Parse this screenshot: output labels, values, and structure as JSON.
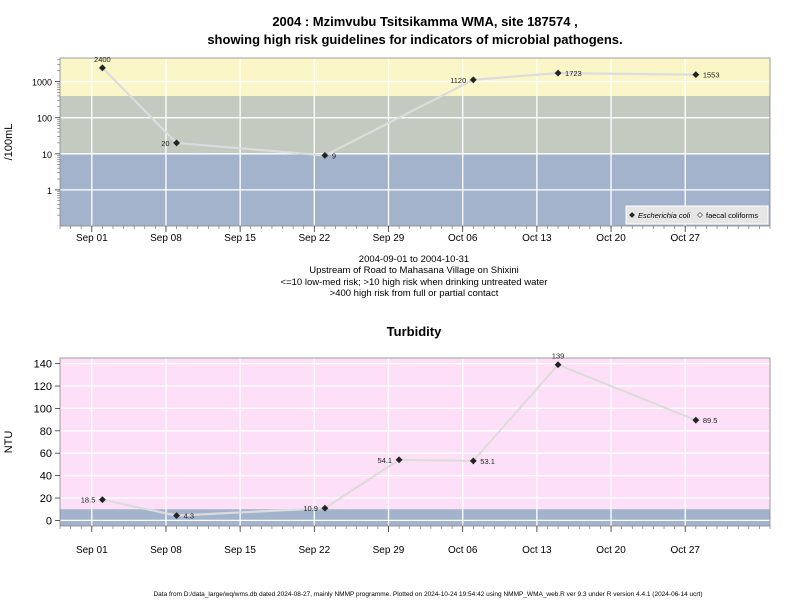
{
  "title": {
    "line1": "2004 : Mzimvubu Tsitsikamma WMA, site 187574 ,",
    "line2": "showing high risk guidelines for indicators of microbial pathogens."
  },
  "footer": "Data from D:/data_large/wq/wms.db dated 2024-08-27, mainly NMMP programme. Plotted on 2024-10-24 19:54:42 using NMMP_WMA_web.R ver 9.3 under R version 4.4.1 (2024-06-14 ucrt)",
  "colors": {
    "background": "#ffffff",
    "band_low": "#a3b3cc",
    "band_mid": "#c3cbc0",
    "band_high": "#fbf6c8",
    "turbidity_bg": "#fde0f8",
    "grid": "#ffffff",
    "line": "#dcdcdc",
    "marker": "#222222"
  },
  "x_ticks": [
    "Sep 01",
    "Sep 08",
    "Sep 15",
    "Sep 22",
    "Sep 29",
    "Oct 06",
    "Oct 13",
    "Oct 20",
    "Oct 27"
  ],
  "x_tick_dates": [
    "2004-09-01",
    "2004-09-08",
    "2004-09-15",
    "2004-09-22",
    "2004-09-29",
    "2004-10-06",
    "2004-10-13",
    "2004-10-20",
    "2004-10-27"
  ],
  "micro": {
    "ylabel": "/100mL",
    "y_ticks": [
      "1",
      "10",
      "100",
      "1000"
    ],
    "y_tick_values": [
      1,
      10,
      100,
      1000
    ],
    "captions": [
      "2004-09-01 to 2004-10-31",
      "Upstream of Road to Mahasana Village on Shixini",
      "<=10 low-med risk; >10 high risk when drinking untreated water",
      ">400 high risk from full or partial contact"
    ],
    "legend": {
      "ecoli": "Escherichia coli",
      "faecal": "faecal coliforms"
    }
  },
  "turbidity": {
    "title": "Turbidity",
    "ylabel": "NTU",
    "y_ticks": [
      "0",
      "20",
      "40",
      "60",
      "80",
      "100",
      "120",
      "140"
    ]
  },
  "chart_data": [
    {
      "type": "line",
      "title": "2004 : Mzimvubu Tsitsikamma WMA, site 187574 , showing high risk guidelines for indicators of microbial pathogens.",
      "ylabel": "/100mL",
      "y_scale": "log",
      "xlim": [
        "2004-08-29",
        "2004-11-04"
      ],
      "ylim": [
        0.1,
        4500
      ],
      "x_unit": "date",
      "grid": true,
      "legend_position": "bottom-right",
      "risk_bands": [
        {
          "from": 0.1,
          "to": 10,
          "label": "<=10 low-med risk"
        },
        {
          "from": 10,
          "to": 400,
          "label": ">10 high risk when drinking untreated water"
        },
        {
          "from": 400,
          "to": 4500,
          "label": ">400 high risk from full or partial contact"
        }
      ],
      "series": [
        {
          "name": "Escherichia coli",
          "x": [
            "2004-09-02",
            "2004-09-09",
            "2004-09-23",
            "2004-10-07",
            "2004-10-15",
            "2004-10-28"
          ],
          "values": [
            2400,
            20,
            9,
            1120,
            1723,
            1553
          ],
          "labels": [
            "2400",
            "20",
            "9",
            "1120",
            "1723",
            "1553"
          ]
        }
      ]
    },
    {
      "type": "line",
      "title": "Turbidity",
      "ylabel": "NTU",
      "xlim": [
        "2004-08-29",
        "2004-11-04"
      ],
      "ylim": [
        -5,
        145
      ],
      "x_unit": "date",
      "grid": true,
      "band": {
        "from": -5,
        "to": 10
      },
      "series": [
        {
          "name": "",
          "x": [
            "2004-09-02",
            "2004-09-09",
            "2004-09-23",
            "2004-09-30",
            "2004-10-07",
            "2004-10-15",
            "2004-10-28"
          ],
          "values": [
            18.5,
            4.3,
            10.9,
            54.1,
            53.1,
            139,
            89.5
          ],
          "labels": [
            "18.5",
            "4.3",
            "10.9",
            "54.1",
            "53.1",
            "139",
            "89.5"
          ]
        }
      ]
    }
  ]
}
